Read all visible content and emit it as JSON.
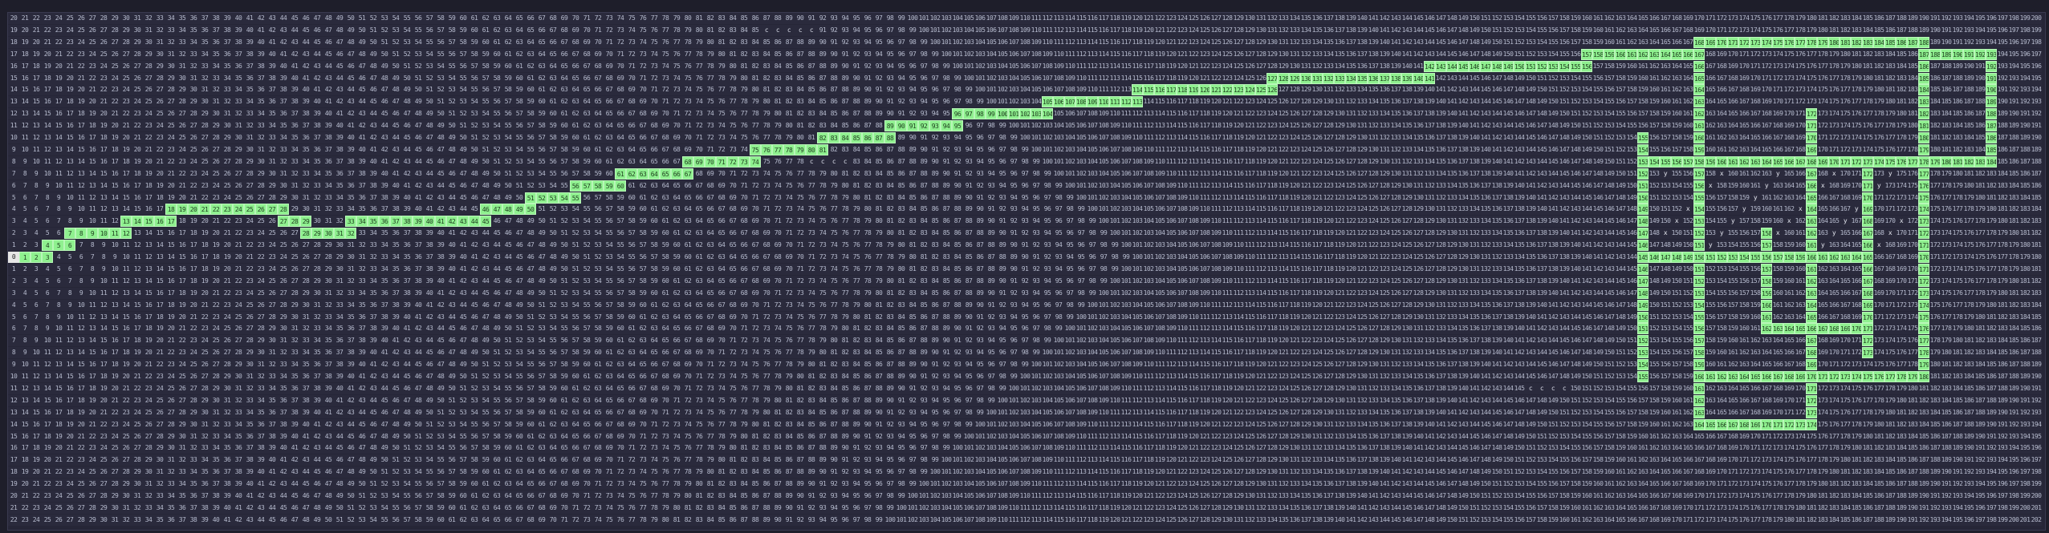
{
  "grid": {
    "cols": 181,
    "rows": 43,
    "path_color": "#8ff08f",
    "cell_color": "#2a2a3c",
    "text_color": "#b7bccf",
    "symbols": {
      "start": "0",
      "wall": "c",
      "marker_x": "x",
      "marker_y": "y"
    },
    "path_segments": [
      {
        "row": 20,
        "from": 0,
        "to": 3
      },
      {
        "row": 19,
        "from": 3,
        "to": 5
      },
      {
        "row": 18,
        "from": 5,
        "to": 10
      },
      {
        "row": 17,
        "from": 10,
        "to": 14
      },
      {
        "row": 16,
        "from": 14,
        "to": 18
      },
      {
        "row": 16,
        "from": 18,
        "to": 24
      },
      {
        "row": 17,
        "from": 24,
        "to": 26
      },
      {
        "row": 18,
        "from": 26,
        "to": 30
      },
      {
        "row": 17,
        "from": 30,
        "to": 42
      },
      {
        "row": 16,
        "from": 42,
        "to": 46
      },
      {
        "row": 15,
        "from": 46,
        "to": 50
      },
      {
        "row": 14,
        "from": 50,
        "to": 54
      },
      {
        "row": 13,
        "from": 54,
        "to": 60
      },
      {
        "row": 12,
        "from": 60,
        "to": 66
      },
      {
        "row": 11,
        "from": 66,
        "to": 72
      },
      {
        "row": 10,
        "from": 72,
        "to": 78
      },
      {
        "row": 9,
        "from": 78,
        "to": 84
      },
      {
        "row": 8,
        "from": 84,
        "to": 92
      },
      {
        "row": 7,
        "from": 92,
        "to": 100
      },
      {
        "row": 6,
        "from": 100,
        "to": 112
      },
      {
        "row": 5,
        "from": 112,
        "to": 126
      },
      {
        "row": 4,
        "from": 126,
        "to": 140
      },
      {
        "row": 3,
        "from": 140,
        "to": 150
      },
      {
        "row": 2,
        "from": 150,
        "to": 160
      },
      {
        "row": 2,
        "from": 160,
        "to": 170
      },
      {
        "row": 3,
        "from": 170,
        "to": 176
      }
    ],
    "path_columns": [
      {
        "col": 176,
        "from": 3,
        "to": 12
      },
      {
        "col": 170,
        "from": 2,
        "to": 30
      },
      {
        "col": 150,
        "from": 3,
        "to": 34
      },
      {
        "col": 160,
        "from": 8,
        "to": 34
      },
      {
        "col": 145,
        "from": 10,
        "to": 30
      },
      {
        "col": 165,
        "from": 12,
        "to": 28
      },
      {
        "col": 156,
        "from": 18,
        "to": 26
      }
    ],
    "path_extra_rows": [
      {
        "row": 30,
        "from": 150,
        "to": 170
      },
      {
        "row": 34,
        "from": 150,
        "to": 160
      },
      {
        "row": 12,
        "from": 145,
        "to": 176
      },
      {
        "row": 20,
        "from": 145,
        "to": 165
      },
      {
        "row": 26,
        "from": 156,
        "to": 165
      }
    ]
  }
}
